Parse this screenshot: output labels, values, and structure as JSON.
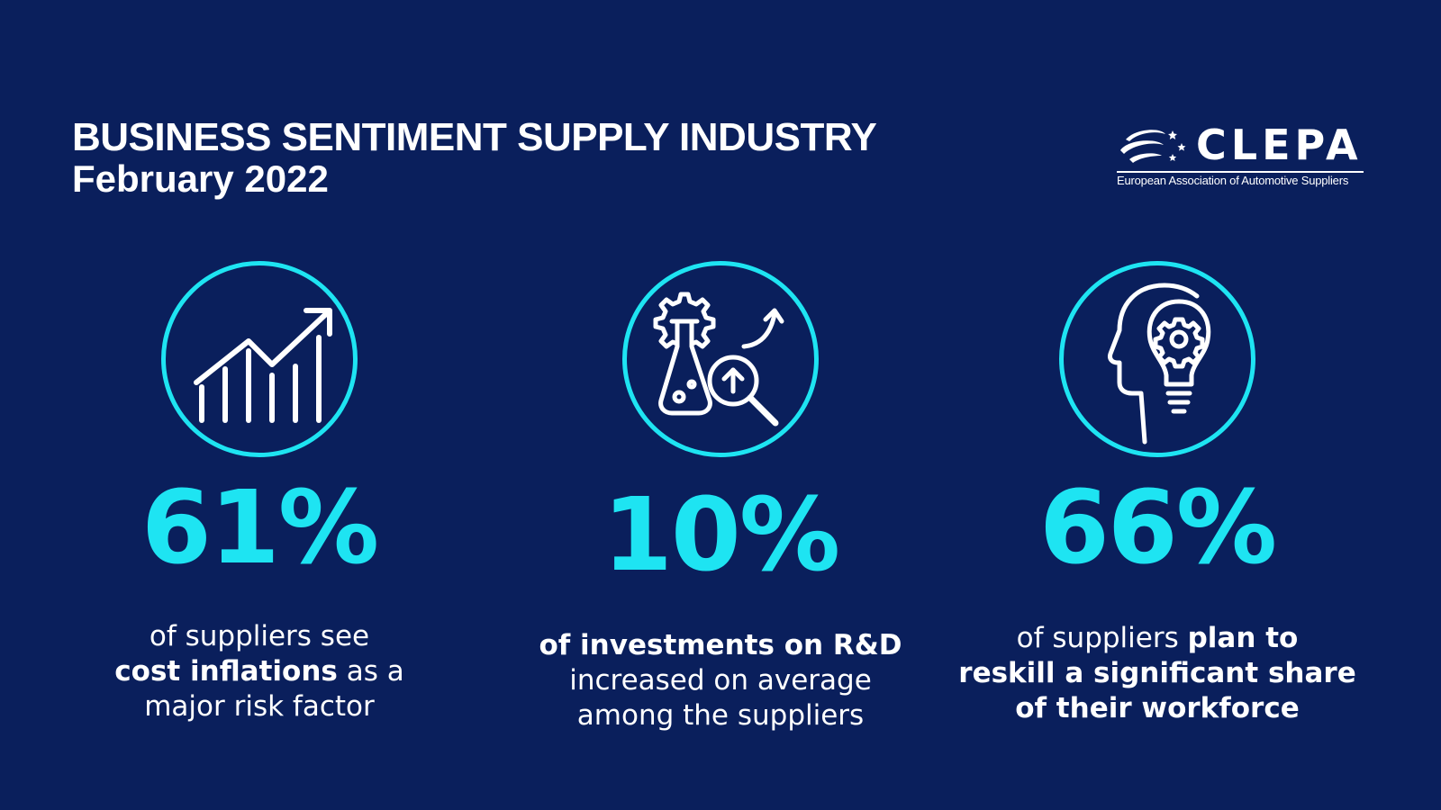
{
  "header": {
    "title": "BUSINESS SENTIMENT SUPPLY INDUSTRY",
    "subtitle": "February 2022"
  },
  "logo": {
    "wordmark": "CLEPA",
    "tagline": "European Association of Automotive Suppliers",
    "mark_icon": "swoosh-stars-icon"
  },
  "stats": [
    {
      "icon": "rising-bar-chart-icon",
      "percent": "61%",
      "caption": {
        "line1": "of suppliers see",
        "line2_em": "cost inflations",
        "line2_rest": " as a",
        "line3": "major risk factor"
      }
    },
    {
      "icon": "rnd-flask-gear-magnifier-icon",
      "percent": "10%",
      "caption": {
        "line1_em": "of investments on R&D",
        "line2": "increased on average",
        "line3": "among the suppliers"
      }
    },
    {
      "icon": "head-lightbulb-gear-icon",
      "percent": "66%",
      "caption": {
        "line1": "of suppliers ",
        "line1_em": "plan to",
        "line2_em": "reskill a significant share",
        "line3_em": "of their workforce"
      }
    }
  ],
  "colors": {
    "background": "#0a1f5c",
    "accent": "#1ee4f2",
    "text": "#ffffff"
  }
}
